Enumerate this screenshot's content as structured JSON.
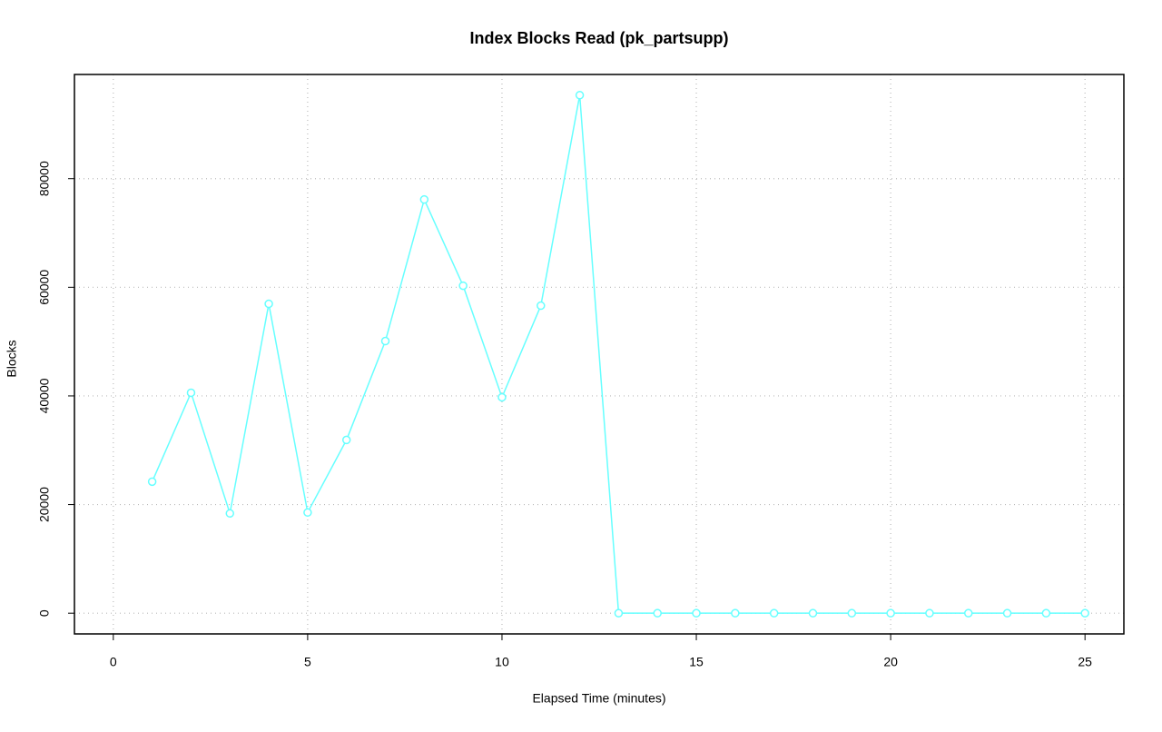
{
  "chart_data": {
    "type": "line",
    "title": "Index Blocks Read (pk_partsupp)",
    "x_label": "Elapsed Time (minutes)",
    "y_label": "Blocks",
    "x": [
      1,
      2,
      3,
      4,
      5,
      6,
      7,
      8,
      9,
      10,
      11,
      12,
      13,
      14,
      15,
      16,
      17,
      18,
      19,
      20,
      21,
      22,
      23,
      24,
      25
    ],
    "series": [
      {
        "name": "pk_partsupp",
        "color": "#66ffff",
        "values": [
          24217,
          40585,
          18372,
          56952,
          18539,
          31900,
          50104,
          76159,
          60292,
          39750,
          56618,
          95366,
          0,
          0,
          0,
          0,
          0,
          0,
          0,
          0,
          0,
          0,
          0,
          0,
          0
        ]
      }
    ],
    "xlim": [
      -1,
      26
    ],
    "ylim": [
      -3815,
      99180
    ],
    "xticks": [
      0,
      5,
      10,
      15,
      20,
      25
    ],
    "yticks": [
      0,
      20000,
      40000,
      60000,
      80000
    ],
    "grid": true
  }
}
